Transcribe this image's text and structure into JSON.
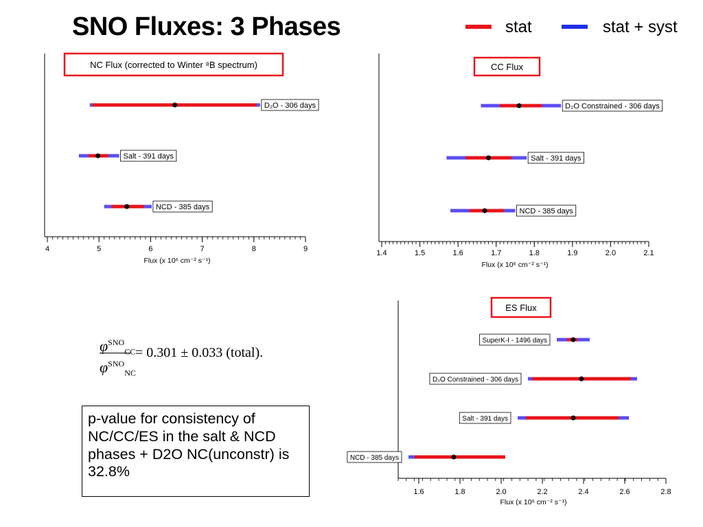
{
  "title": "SNO Fluxes: 3 Phases",
  "legend": {
    "items": [
      {
        "label": "stat",
        "color": "#e8141b"
      },
      {
        "label": "stat + syst",
        "color": "#1f2fe8"
      }
    ]
  },
  "colors": {
    "stat": "#e8141b",
    "syst": "#5b4df0",
    "point": "#000000",
    "box": "#e8141b"
  },
  "formula": {
    "phi": "φ",
    "num_sup": "SNO",
    "num_sub": "CC",
    "den_sup": "SNO",
    "den_sub": "NC",
    "rhs": "= 0.301 ± 0.033 (total)."
  },
  "note": "p-value for consistency of NC/CC/ES in the salt & NCD phases + D2O NC(unconstr) is 32.8%",
  "chart_data": [
    {
      "type": "errorbar",
      "title": "NC Flux (corrected to Winter ⁸B spectrum)",
      "xlabel": "Flux (x 10⁶ cm⁻² s⁻¹)",
      "xlim": [
        4,
        9
      ],
      "xticks": [
        "4",
        "5",
        "6",
        "7",
        "8",
        "9"
      ],
      "grid": false,
      "label_side": "right",
      "series": [
        {
          "label": "D₂O - 306 days",
          "value": 6.47,
          "stat": [
            4.87,
            8.05
          ],
          "syst": [
            4.82,
            8.12
          ]
        },
        {
          "label": "Salt - 391 days",
          "value": 4.98,
          "stat": [
            4.8,
            5.18
          ],
          "syst": [
            4.61,
            5.39
          ]
        },
        {
          "label": "NCD - 385 days",
          "value": 5.54,
          "stat": [
            5.24,
            5.87
          ],
          "syst": [
            5.1,
            6.02
          ]
        }
      ]
    },
    {
      "type": "errorbar",
      "title": "CC Flux",
      "xlabel": "Flux (x 10⁶ cm⁻² s⁻¹)",
      "xlim": [
        1.4,
        2.1
      ],
      "xticks": [
        "1.4",
        "1.5",
        "1.6",
        "1.7",
        "1.8",
        "1.9",
        "2.0",
        "2.1"
      ],
      "grid": false,
      "label_side": "right",
      "series": [
        {
          "label": "D₂O Constrained - 306 days",
          "value": 1.76,
          "stat": [
            1.71,
            1.82
          ],
          "syst": [
            1.66,
            1.87
          ]
        },
        {
          "label": "Salt - 391 days",
          "value": 1.68,
          "stat": [
            1.62,
            1.74
          ],
          "syst": [
            1.57,
            1.78
          ]
        },
        {
          "label": "NCD - 385 days",
          "value": 1.67,
          "stat": [
            1.63,
            1.72
          ],
          "syst": [
            1.58,
            1.75
          ]
        }
      ]
    },
    {
      "type": "errorbar",
      "title": "ES Flux",
      "xlabel": "Flux (x 10⁶ cm⁻² s⁻¹)",
      "xlim": [
        1.5,
        2.8
      ],
      "xticks": [
        "1.6",
        "1.8",
        "2.0",
        "2.2",
        "2.4",
        "2.6",
        "2.8"
      ],
      "grid": false,
      "label_side": "left",
      "series": [
        {
          "label": "SuperK-I - 1496 days",
          "value": 2.35,
          "stat": [
            2.32,
            2.37
          ],
          "syst": [
            2.27,
            2.43
          ]
        },
        {
          "label": "D₂O Constrained - 306 days",
          "value": 2.39,
          "stat": [
            2.15,
            2.63
          ],
          "syst": [
            2.13,
            2.66
          ]
        },
        {
          "label": "Salt - 391 days",
          "value": 2.35,
          "stat": [
            2.12,
            2.57
          ],
          "syst": [
            2.08,
            2.62
          ]
        },
        {
          "label": "NCD - 385 days",
          "value": 1.77,
          "stat": [
            1.58,
            2.02
          ],
          "syst": [
            1.55,
            2.02
          ]
        }
      ]
    }
  ]
}
